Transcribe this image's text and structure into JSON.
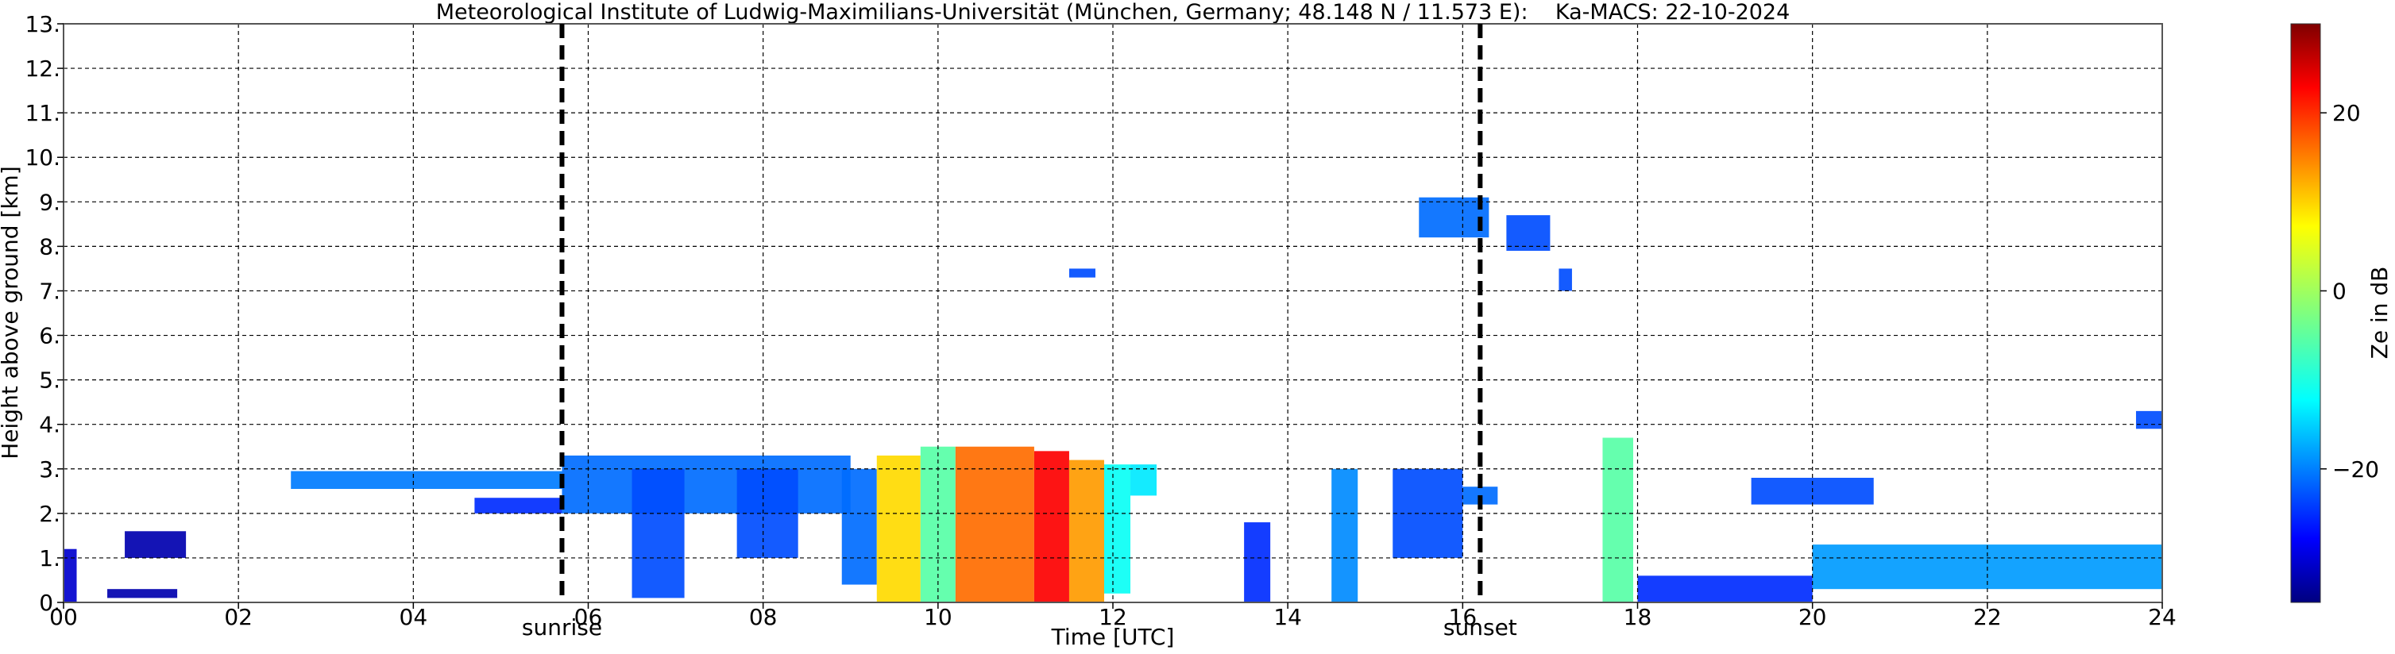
{
  "chart_data": {
    "type": "heatmap",
    "title": "Meteorological Institute of Ludwig-Maximilians-Universität (München, Germany; 48.148 N / 11.573 E):    Ka-MACS: 22-10-2024",
    "xlabel": "Time [UTC]",
    "ylabel": "Height above ground [km]",
    "xlim": [
      0,
      24
    ],
    "ylim": [
      0,
      13
    ],
    "x_ticks": [
      0,
      2,
      4,
      6,
      8,
      10,
      12,
      14,
      16,
      18,
      20,
      22,
      24
    ],
    "x_tick_labels": [
      "00",
      "02",
      "04",
      "06",
      "08",
      "10",
      "12",
      "14",
      "16",
      "18",
      "20",
      "22",
      "24"
    ],
    "y_ticks": [
      0,
      1,
      2,
      3,
      4,
      5,
      6,
      7,
      8,
      9,
      10,
      11,
      12,
      13
    ],
    "y_tick_labels": [
      "0.",
      "1.",
      "2.",
      "3.",
      "4.",
      "5.",
      "6.",
      "7.",
      "8.",
      "9.",
      "10.",
      "11.",
      "12.",
      "13."
    ],
    "grid": true,
    "colorbar": {
      "label": "Ze in dB",
      "range": [
        -35,
        30
      ],
      "ticks": [
        20,
        0,
        -20
      ],
      "tick_labels": [
        "20",
        "0",
        "−20"
      ],
      "colormap": "jet"
    },
    "annotations": [
      {
        "x": 5.7,
        "label": "sunrise"
      },
      {
        "x": 16.2,
        "label": "sunset"
      }
    ],
    "echo_regions": [
      {
        "t0": 0.0,
        "t1": 0.15,
        "h0": 0.0,
        "h1": 1.2,
        "ze": -30
      },
      {
        "t0": 0.7,
        "t1": 1.4,
        "h0": 1.0,
        "h1": 1.6,
        "ze": -32
      },
      {
        "t0": 0.5,
        "t1": 1.3,
        "h0": 0.1,
        "h1": 0.3,
        "ze": -32
      },
      {
        "t0": 2.6,
        "t1": 5.7,
        "h0": 2.55,
        "h1": 2.95,
        "ze": -19
      },
      {
        "t0": 4.7,
        "t1": 5.7,
        "h0": 2.0,
        "h1": 2.35,
        "ze": -24
      },
      {
        "t0": 5.7,
        "t1": 9.0,
        "h0": 2.0,
        "h1": 3.3,
        "ze": -20
      },
      {
        "t0": 6.5,
        "t1": 7.1,
        "h0": 0.1,
        "h1": 3.0,
        "ze": -22
      },
      {
        "t0": 7.7,
        "t1": 8.4,
        "h0": 1.0,
        "h1": 3.0,
        "ze": -22
      },
      {
        "t0": 8.9,
        "t1": 9.3,
        "h0": 0.4,
        "h1": 3.0,
        "ze": -20
      },
      {
        "t0": 9.3,
        "t1": 9.8,
        "h0": 0.0,
        "h1": 3.3,
        "ze": 8
      },
      {
        "t0": 9.8,
        "t1": 10.2,
        "h0": 0.0,
        "h1": 3.5,
        "ze": -5
      },
      {
        "t0": 10.2,
        "t1": 11.1,
        "h0": 0.0,
        "h1": 3.5,
        "ze": 15
      },
      {
        "t0": 11.1,
        "t1": 11.5,
        "h0": 0.0,
        "h1": 3.4,
        "ze": 22
      },
      {
        "t0": 11.5,
        "t1": 11.9,
        "h0": 0.0,
        "h1": 3.2,
        "ze": 12
      },
      {
        "t0": 11.9,
        "t1": 12.2,
        "h0": 0.2,
        "h1": 3.1,
        "ze": -10
      },
      {
        "t0": 12.2,
        "t1": 12.5,
        "h0": 2.4,
        "h1": 3.1,
        "ze": -12
      },
      {
        "t0": 13.5,
        "t1": 13.8,
        "h0": 0.0,
        "h1": 1.8,
        "ze": -24
      },
      {
        "t0": 14.5,
        "t1": 14.8,
        "h0": 0.0,
        "h1": 3.0,
        "ze": -18
      },
      {
        "t0": 15.2,
        "t1": 16.0,
        "h0": 1.0,
        "h1": 3.0,
        "ze": -22
      },
      {
        "t0": 16.0,
        "t1": 16.4,
        "h0": 2.2,
        "h1": 2.6,
        "ze": -20
      },
      {
        "t0": 15.5,
        "t1": 16.3,
        "h0": 8.2,
        "h1": 9.1,
        "ze": -20
      },
      {
        "t0": 16.5,
        "t1": 17.0,
        "h0": 7.9,
        "h1": 8.7,
        "ze": -22
      },
      {
        "t0": 17.1,
        "t1": 17.25,
        "h0": 7.0,
        "h1": 7.5,
        "ze": -22
      },
      {
        "t0": 11.5,
        "t1": 11.8,
        "h0": 7.3,
        "h1": 7.5,
        "ze": -22
      },
      {
        "t0": 17.6,
        "t1": 17.95,
        "h0": 0.0,
        "h1": 3.7,
        "ze": -5
      },
      {
        "t0": 18.0,
        "t1": 20.0,
        "h0": 0.0,
        "h1": 0.6,
        "ze": -24
      },
      {
        "t0": 19.3,
        "t1": 20.7,
        "h0": 2.2,
        "h1": 2.8,
        "ze": -22
      },
      {
        "t0": 20.0,
        "t1": 24.0,
        "h0": 0.3,
        "h1": 1.3,
        "ze": -17
      },
      {
        "t0": 23.7,
        "t1": 24.0,
        "h0": 3.9,
        "h1": 4.3,
        "ze": -22
      }
    ]
  }
}
